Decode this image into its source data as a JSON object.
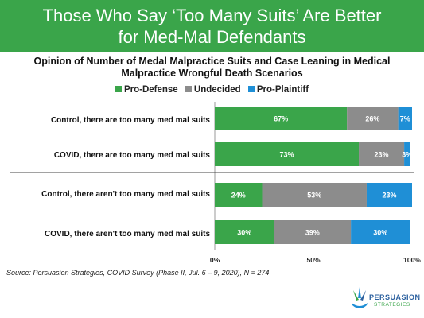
{
  "title_line1": "Those Who Say ‘Too Many Suits’ Are Better",
  "title_line2": "for Med-Mal Defendants",
  "source": "Source: Persuasion Strategies, COVID Survey (Phase II, Jul. 6 – 9, 2020), N = 274",
  "logo": {
    "name": "PERSUASION",
    "sub": "STRATEGIES"
  },
  "colors": {
    "banner": "#3aa54a",
    "pro_defense": "#3aa54a",
    "undecided": "#8c8c8c",
    "pro_plaintiff": "#1f8fd6"
  },
  "chart_data": {
    "type": "bar",
    "orientation": "horizontal",
    "stacked": true,
    "title_line1": "Opinion of Number of Medal Malpractice Suits and Case Leaning in Medical",
    "title_line2": "Malpractice Wrongful Death Scenarios",
    "legend_position": "top",
    "categories": [
      "Control, there are too many med mal suits",
      "COVID,  there are too many med mal suits",
      "Control, there aren't too many med mal suits",
      "COVID, there aren't too many med mal suits"
    ],
    "series": [
      {
        "name": "Pro-Defense",
        "color": "#3aa54a",
        "values": [
          67,
          73,
          24,
          30
        ],
        "labels": [
          "67%",
          "73%",
          "24%",
          "30%"
        ]
      },
      {
        "name": "Undecided",
        "color": "#8c8c8c",
        "values": [
          26,
          23,
          53,
          39
        ],
        "labels": [
          "26%",
          "23%",
          "53%",
          "39%"
        ]
      },
      {
        "name": "Pro-Plaintiff",
        "color": "#1f8fd6",
        "values": [
          7,
          3,
          23,
          30
        ],
        "labels": [
          "7%",
          "3%",
          "23%",
          "30%"
        ]
      }
    ],
    "x_ticks": [
      "0%",
      "50%",
      "100%"
    ],
    "xlim": [
      0,
      100
    ],
    "grid": false
  }
}
